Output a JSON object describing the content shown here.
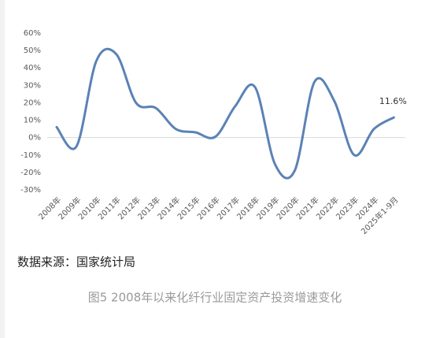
{
  "chart_data": {
    "type": "line",
    "categories": [
      "2008年",
      "2009年",
      "2010年",
      "2011年",
      "2012年",
      "2013年",
      "2014年",
      "2015年",
      "2016年",
      "2017年",
      "2018年",
      "2019年",
      "2020年",
      "2021年",
      "2022年",
      "2023年",
      "2024年",
      "2025年1-9月"
    ],
    "values": [
      6,
      -5,
      44,
      48,
      20,
      17,
      5,
      3,
      0.5,
      18,
      29,
      -15,
      -19,
      32,
      21,
      -10,
      5,
      11.6
    ],
    "value_labels": [
      null,
      null,
      null,
      null,
      null,
      null,
      null,
      null,
      null,
      null,
      null,
      null,
      null,
      null,
      null,
      null,
      null,
      "11.6%"
    ],
    "color": "#5b82b5",
    "smooth": true,
    "ylim": [
      -30,
      60
    ],
    "yticks": [
      {
        "value": 60,
        "label": "60%"
      },
      {
        "value": 50,
        "label": "50%"
      },
      {
        "value": 40,
        "label": "40%"
      },
      {
        "value": 30,
        "label": "30%"
      },
      {
        "value": 20,
        "label": "20%"
      },
      {
        "value": 10,
        "label": "10%"
      },
      {
        "value": 0,
        "label": "0%"
      },
      {
        "value": -10,
        "label": "-10%"
      },
      {
        "value": -20,
        "label": "-20%"
      },
      {
        "value": -30,
        "label": "-30%"
      }
    ],
    "source": "数据来源：国家统计局",
    "caption": "图5  2008年以来化纤行业固定资产投资增速变化"
  }
}
